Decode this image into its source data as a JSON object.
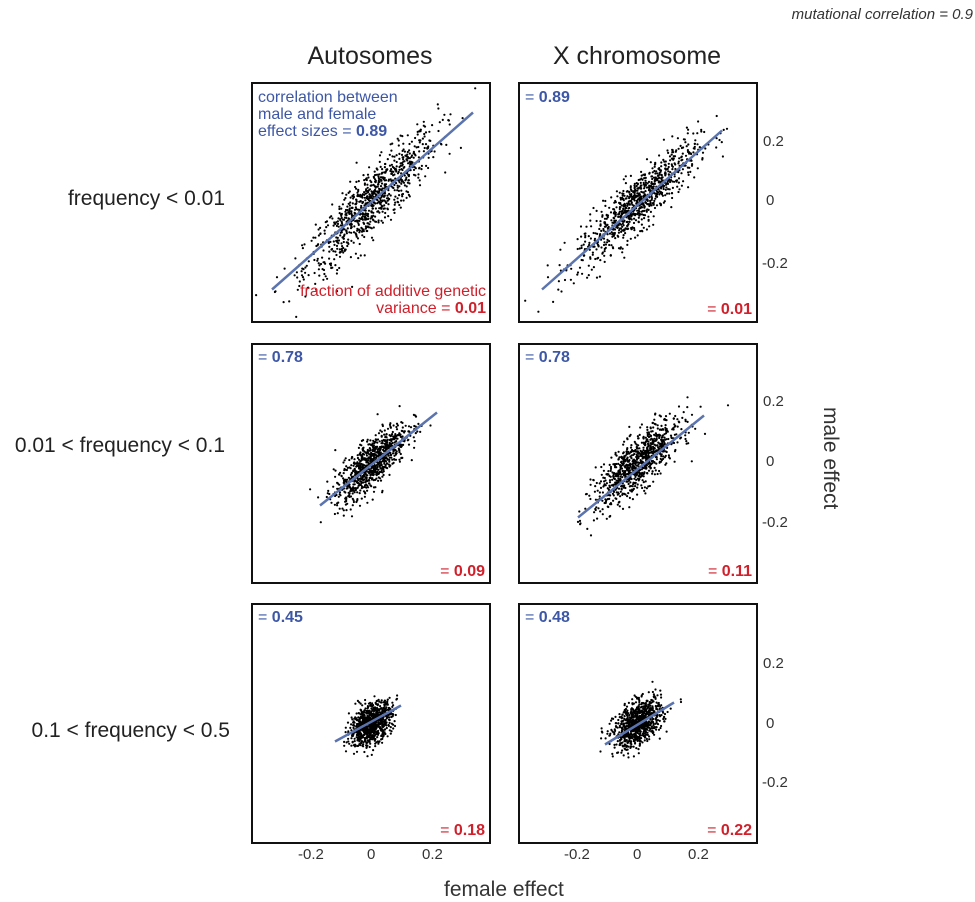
{
  "note": "mutational correlation = 0.9",
  "xlabel": "female effect",
  "ylabel": "male effect",
  "columns": [
    "Autosomes",
    "X chromosome"
  ],
  "rows": [
    "frequency < 0.01",
    "0.01 < frequency < 0.1",
    "0.1 < frequency < 0.5"
  ],
  "annotations": {
    "corr_text": "correlation between male and female effect sizes =",
    "var_text": "fraction of additive genetic variance ="
  },
  "colors": {
    "points": "#000000",
    "fit": "#5b74ae",
    "corr": "#3d57a6",
    "var": "#d0202b"
  },
  "chart_data": {
    "type": "scatter",
    "xlim": [
      -0.4,
      0.4
    ],
    "ylim": [
      -0.4,
      0.4
    ],
    "xticks": [
      "-0.2",
      "0",
      "0.2"
    ],
    "yticks": [
      "0.2",
      "0",
      "-0.2"
    ],
    "grid": false,
    "panels": [
      {
        "row": "frequency < 0.01",
        "column": "Autosomes",
        "correlation": "0.89",
        "variance_fraction": "0.01",
        "fit_x": [
          -0.33,
          0.34
        ],
        "fit_y": [
          -0.29,
          0.3
        ],
        "sd_x": 0.11,
        "sd_y": 0.12,
        "n": 900
      },
      {
        "row": "frequency < 0.01",
        "column": "X chromosome",
        "correlation": "0.89",
        "variance_fraction": "0.01",
        "fit_x": [
          -0.32,
          0.28
        ],
        "fit_y": [
          -0.29,
          0.24
        ],
        "sd_x": 0.1,
        "sd_y": 0.1,
        "n": 900
      },
      {
        "row": "0.01 < frequency < 0.1",
        "column": "Autosomes",
        "correlation": "0.78",
        "variance_fraction": "0.09",
        "fit_x": [
          -0.17,
          0.22
        ],
        "fit_y": [
          -0.14,
          0.17
        ],
        "sd_x": 0.06,
        "sd_y": 0.065,
        "n": 900
      },
      {
        "row": "0.01 < frequency < 0.1",
        "column": "X chromosome",
        "correlation": "0.78",
        "variance_fraction": "0.11",
        "fit_x": [
          -0.2,
          0.22
        ],
        "fit_y": [
          -0.18,
          0.16
        ],
        "sd_x": 0.07,
        "sd_y": 0.07,
        "n": 900
      },
      {
        "row": "0.1 < frequency < 0.5",
        "column": "Autosomes",
        "correlation": "0.45",
        "variance_fraction": "0.18",
        "fit_x": [
          -0.12,
          0.1
        ],
        "fit_y": [
          -0.06,
          0.06
        ],
        "sd_x": 0.035,
        "sd_y": 0.035,
        "n": 900
      },
      {
        "row": "0.1 < frequency < 0.5",
        "column": "X chromosome",
        "correlation": "0.48",
        "variance_fraction": "0.22",
        "fit_x": [
          -0.11,
          0.12
        ],
        "fit_y": [
          -0.07,
          0.07
        ],
        "sd_x": 0.04,
        "sd_y": 0.04,
        "n": 900
      }
    ]
  }
}
